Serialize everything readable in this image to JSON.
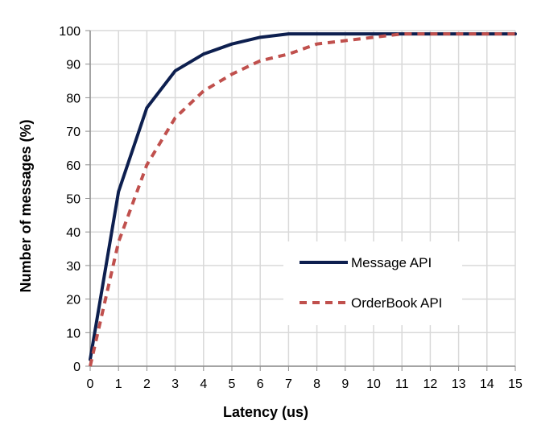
{
  "chart_data": {
    "type": "line",
    "title": "",
    "xlabel": "Latency (us)",
    "ylabel": "Number of messages (%)",
    "xlim": [
      0,
      15
    ],
    "ylim": [
      0,
      100
    ],
    "x_ticks": [
      "0",
      "1",
      "2",
      "3",
      "4",
      "5",
      "6",
      "7",
      "8",
      "9",
      "10",
      "11",
      "12",
      "13",
      "14",
      "15"
    ],
    "y_ticks": [
      "0",
      "10",
      "20",
      "30",
      "40",
      "50",
      "60",
      "70",
      "80",
      "90",
      "100"
    ],
    "grid": true,
    "legend_position": "bottom-right",
    "series": [
      {
        "name": "Message API",
        "color": "#0d1f4f",
        "style": "solid",
        "points": [
          [
            0,
            2
          ],
          [
            1,
            52
          ],
          [
            2,
            77
          ],
          [
            3,
            88
          ],
          [
            4,
            93
          ],
          [
            5,
            96
          ],
          [
            6,
            98
          ],
          [
            7,
            99
          ],
          [
            8,
            99
          ],
          [
            9,
            99
          ],
          [
            10,
            99
          ],
          [
            11,
            99
          ],
          [
            12,
            99
          ],
          [
            13,
            99
          ],
          [
            14,
            99
          ],
          [
            15,
            99
          ]
        ]
      },
      {
        "name": "OrderBook API",
        "color": "#c0504d",
        "style": "dashed",
        "points": [
          [
            0,
            0
          ],
          [
            1,
            37
          ],
          [
            2,
            60
          ],
          [
            3,
            74
          ],
          [
            4,
            82
          ],
          [
            5,
            87
          ],
          [
            6,
            91
          ],
          [
            7,
            93
          ],
          [
            8,
            96
          ],
          [
            9,
            97
          ],
          [
            10,
            98
          ],
          [
            11,
            99
          ],
          [
            12,
            99
          ],
          [
            13,
            99
          ],
          [
            14,
            99
          ],
          [
            15,
            99
          ]
        ]
      }
    ]
  }
}
